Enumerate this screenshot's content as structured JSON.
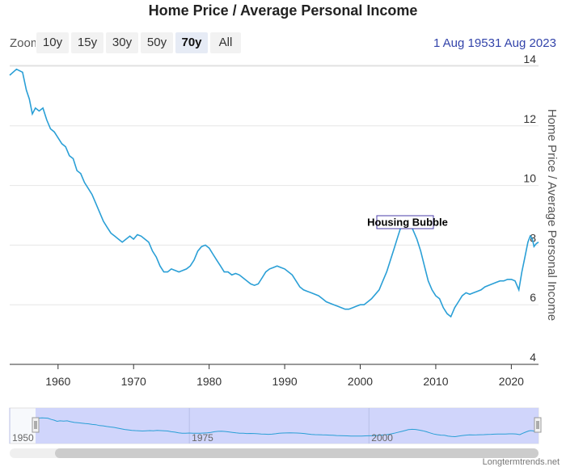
{
  "title": "Home Price / Average Personal Income",
  "toolbar": {
    "zoom_label": "Zoom",
    "buttons": [
      {
        "label": "10y",
        "active": false
      },
      {
        "label": "15y",
        "active": false
      },
      {
        "label": "30y",
        "active": false
      },
      {
        "label": "50y",
        "active": false
      },
      {
        "label": "70y",
        "active": true
      },
      {
        "label": "All",
        "active": false
      }
    ],
    "date_from": "1 Aug 1953",
    "date_to": "1 Aug 2023"
  },
  "watermark": "Longtermtrends.net",
  "colors": {
    "line": "#2a9fd6",
    "navigator_fill": "#c9cffa",
    "grid": "#e6e6e6"
  },
  "chart_data": {
    "type": "line",
    "title": "Home Price / Average Personal Income",
    "ylabel": "Home Price / Average Personal Income",
    "xlabel": "",
    "xlim": [
      1953.6,
      2023.6
    ],
    "ylim": [
      4,
      14
    ],
    "x_ticks": [
      1960,
      1970,
      1980,
      1990,
      2000,
      2010,
      2020
    ],
    "y_ticks": [
      4,
      6,
      8,
      10,
      12,
      14
    ],
    "grid": true,
    "legend": "none",
    "annotation": {
      "text": "Housing Bubble",
      "x": 2006.0,
      "y": 8.8
    },
    "navigator": {
      "range": [
        1950,
        2023.6
      ],
      "selected": [
        1953.6,
        2023.6
      ],
      "labels": [
        {
          "text": "1950",
          "x": 1950
        },
        {
          "text": "1975",
          "x": 1975
        },
        {
          "text": "2000",
          "x": 2000
        }
      ]
    },
    "series": [
      {
        "points": [
          [
            1953.6,
            13.7
          ],
          [
            1954.5,
            13.9
          ],
          [
            1955.3,
            13.8
          ],
          [
            1955.8,
            13.2
          ],
          [
            1956.2,
            12.9
          ],
          [
            1956.6,
            12.4
          ],
          [
            1957.0,
            12.6
          ],
          [
            1957.5,
            12.5
          ],
          [
            1958.0,
            12.6
          ],
          [
            1958.5,
            12.2
          ],
          [
            1959.0,
            11.9
          ],
          [
            1959.5,
            11.8
          ],
          [
            1960.0,
            11.6
          ],
          [
            1960.5,
            11.4
          ],
          [
            1961.0,
            11.3
          ],
          [
            1961.5,
            11.0
          ],
          [
            1962.0,
            10.9
          ],
          [
            1962.5,
            10.5
          ],
          [
            1963.0,
            10.4
          ],
          [
            1963.5,
            10.1
          ],
          [
            1964.0,
            9.9
          ],
          [
            1964.5,
            9.7
          ],
          [
            1965.0,
            9.4
          ],
          [
            1965.5,
            9.1
          ],
          [
            1966.0,
            8.8
          ],
          [
            1966.5,
            8.6
          ],
          [
            1967.0,
            8.4
          ],
          [
            1967.5,
            8.3
          ],
          [
            1968.0,
            8.2
          ],
          [
            1968.5,
            8.1
          ],
          [
            1969.0,
            8.2
          ],
          [
            1969.5,
            8.3
          ],
          [
            1970.0,
            8.2
          ],
          [
            1970.5,
            8.35
          ],
          [
            1971.0,
            8.3
          ],
          [
            1971.5,
            8.2
          ],
          [
            1972.0,
            8.1
          ],
          [
            1972.5,
            7.8
          ],
          [
            1973.0,
            7.6
          ],
          [
            1973.5,
            7.3
          ],
          [
            1974.0,
            7.1
          ],
          [
            1974.5,
            7.1
          ],
          [
            1975.0,
            7.2
          ],
          [
            1975.5,
            7.15
          ],
          [
            1976.0,
            7.1
          ],
          [
            1976.5,
            7.15
          ],
          [
            1977.0,
            7.2
          ],
          [
            1977.5,
            7.3
          ],
          [
            1978.0,
            7.5
          ],
          [
            1978.5,
            7.8
          ],
          [
            1979.0,
            7.95
          ],
          [
            1979.5,
            8.0
          ],
          [
            1980.0,
            7.9
          ],
          [
            1980.5,
            7.7
          ],
          [
            1981.0,
            7.5
          ],
          [
            1981.5,
            7.3
          ],
          [
            1982.0,
            7.1
          ],
          [
            1982.5,
            7.1
          ],
          [
            1983.0,
            7.0
          ],
          [
            1983.5,
            7.05
          ],
          [
            1984.0,
            7.0
          ],
          [
            1984.5,
            6.9
          ],
          [
            1985.0,
            6.8
          ],
          [
            1985.5,
            6.7
          ],
          [
            1986.0,
            6.65
          ],
          [
            1986.5,
            6.7
          ],
          [
            1987.0,
            6.9
          ],
          [
            1987.5,
            7.1
          ],
          [
            1988.0,
            7.2
          ],
          [
            1988.5,
            7.25
          ],
          [
            1989.0,
            7.3
          ],
          [
            1989.5,
            7.25
          ],
          [
            1990.0,
            7.2
          ],
          [
            1990.5,
            7.1
          ],
          [
            1991.0,
            7.0
          ],
          [
            1991.5,
            6.8
          ],
          [
            1992.0,
            6.6
          ],
          [
            1992.5,
            6.5
          ],
          [
            1993.0,
            6.45
          ],
          [
            1993.5,
            6.4
          ],
          [
            1994.0,
            6.35
          ],
          [
            1994.5,
            6.3
          ],
          [
            1995.0,
            6.2
          ],
          [
            1995.5,
            6.1
          ],
          [
            1996.0,
            6.05
          ],
          [
            1996.5,
            6.0
          ],
          [
            1997.0,
            5.95
          ],
          [
            1997.5,
            5.9
          ],
          [
            1998.0,
            5.85
          ],
          [
            1998.5,
            5.85
          ],
          [
            1999.0,
            5.9
          ],
          [
            1999.5,
            5.95
          ],
          [
            2000.0,
            6.0
          ],
          [
            2000.5,
            6.0
          ],
          [
            2001.0,
            6.1
          ],
          [
            2001.5,
            6.2
          ],
          [
            2002.0,
            6.35
          ],
          [
            2002.5,
            6.5
          ],
          [
            2003.0,
            6.8
          ],
          [
            2003.5,
            7.1
          ],
          [
            2004.0,
            7.5
          ],
          [
            2004.5,
            7.9
          ],
          [
            2005.0,
            8.3
          ],
          [
            2005.5,
            8.7
          ],
          [
            2006.0,
            8.85
          ],
          [
            2006.5,
            8.8
          ],
          [
            2007.0,
            8.5
          ],
          [
            2007.5,
            8.2
          ],
          [
            2008.0,
            7.8
          ],
          [
            2008.5,
            7.3
          ],
          [
            2009.0,
            6.8
          ],
          [
            2009.5,
            6.5
          ],
          [
            2010.0,
            6.3
          ],
          [
            2010.5,
            6.2
          ],
          [
            2011.0,
            5.9
          ],
          [
            2011.5,
            5.7
          ],
          [
            2012.0,
            5.6
          ],
          [
            2012.5,
            5.9
          ],
          [
            2013.0,
            6.1
          ],
          [
            2013.5,
            6.3
          ],
          [
            2014.0,
            6.4
          ],
          [
            2014.5,
            6.35
          ],
          [
            2015.0,
            6.4
          ],
          [
            2015.5,
            6.45
          ],
          [
            2016.0,
            6.5
          ],
          [
            2016.5,
            6.6
          ],
          [
            2017.0,
            6.65
          ],
          [
            2017.5,
            6.7
          ],
          [
            2018.0,
            6.75
          ],
          [
            2018.5,
            6.8
          ],
          [
            2019.0,
            6.8
          ],
          [
            2019.5,
            6.85
          ],
          [
            2020.0,
            6.85
          ],
          [
            2020.5,
            6.8
          ],
          [
            2021.0,
            6.5
          ],
          [
            2021.4,
            7.1
          ],
          [
            2021.8,
            7.6
          ],
          [
            2022.2,
            8.1
          ],
          [
            2022.5,
            8.3
          ],
          [
            2022.8,
            8.2
          ],
          [
            2023.0,
            7.95
          ],
          [
            2023.3,
            8.05
          ],
          [
            2023.6,
            8.1
          ]
        ]
      }
    ]
  }
}
